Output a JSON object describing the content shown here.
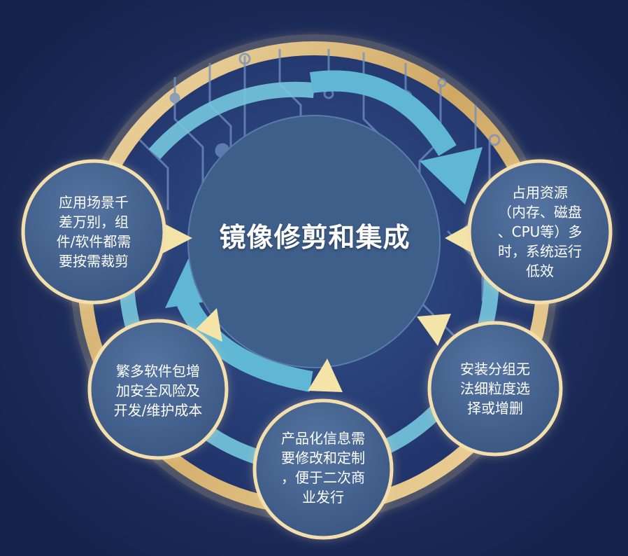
{
  "center": {
    "title": "镜像修剪和集成"
  },
  "nodes": [
    {
      "id": "scenario",
      "text": "应用场景千\n差万别，组\n件/软件都需\n要按需裁剪"
    },
    {
      "id": "resources",
      "text": "占用资源\n（内存、磁盘\n、CPU等）多\n时，系统运行\n低效"
    },
    {
      "id": "granularity",
      "text": "安装分组无\n法细粒度选\n择或增删"
    },
    {
      "id": "product",
      "text": "产品化信息需\n要修改和定制\n，便于二次商\n业发行"
    },
    {
      "id": "risk",
      "text": "繁多软件包增\n加安全风险及\n开发/维护成本"
    }
  ],
  "colors": {
    "background": "#1b2a58",
    "ring_gold": "#d9b77a",
    "ring_blue": "#6fc6dd",
    "node_fill": "#44628e",
    "center_fill": "#40628d",
    "pointer": "#f2e3a6",
    "circuit": "#7fa2cf"
  }
}
